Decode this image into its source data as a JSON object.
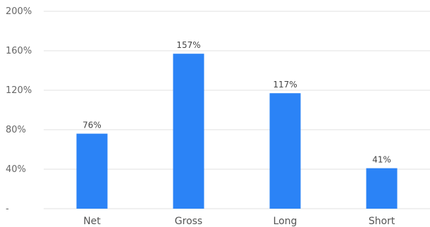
{
  "chart_data": {
    "type": "bar",
    "categories": [
      "Net",
      "Gross",
      "Long",
      "Short"
    ],
    "values": [
      76,
      157,
      117,
      41
    ],
    "data_labels": [
      "76%",
      "157%",
      "117%",
      "41%"
    ],
    "ytick_values": [
      0,
      40,
      80,
      120,
      160,
      200
    ],
    "ytick_labels": [
      "-",
      "40%",
      "80%",
      "120%",
      "160%",
      "200%"
    ],
    "ylim": [
      0,
      200
    ],
    "grid": true,
    "bar_color": "#2b83f6",
    "grid_color": "#e0e0e0"
  }
}
